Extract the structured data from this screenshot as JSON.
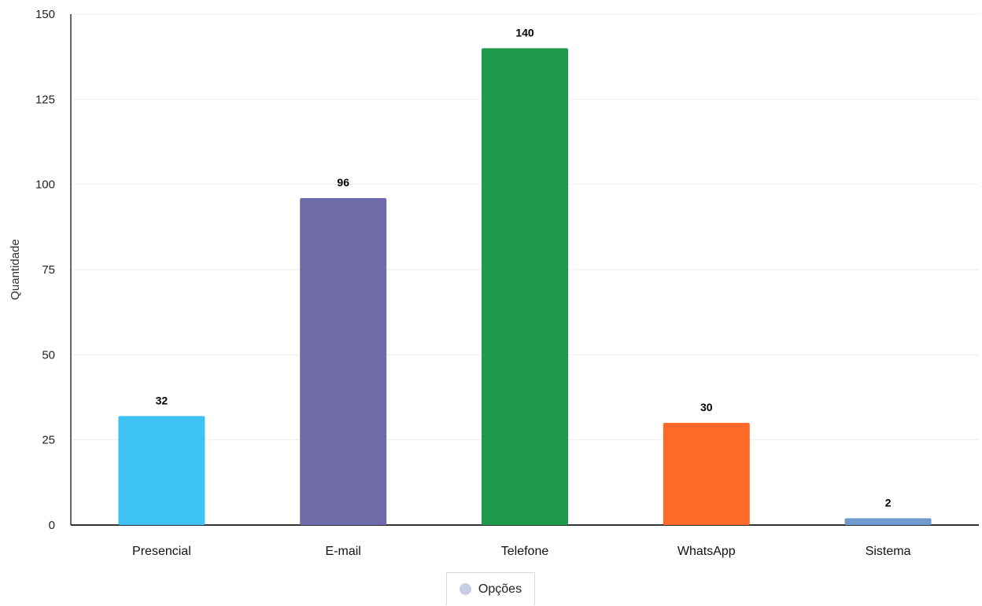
{
  "chart_data": {
    "type": "bar",
    "ylabel": "Quantidade",
    "xlabel": "",
    "ylim": [
      0,
      150
    ],
    "yticks": [
      0,
      25,
      50,
      75,
      100,
      125,
      150
    ],
    "categories": [
      "Presencial",
      "E-mail",
      "Telefone",
      "WhatsApp",
      "Sistema"
    ],
    "values": [
      32,
      96,
      140,
      30,
      2
    ],
    "colors": [
      "#3ec1f3",
      "#6f6aa8",
      "#1f9a4a",
      "#ff6a2b",
      "#6e9ad0"
    ],
    "grid": true,
    "legend": {
      "position": "bottom-center",
      "label": "Opções",
      "color": "#c9cde4"
    }
  }
}
